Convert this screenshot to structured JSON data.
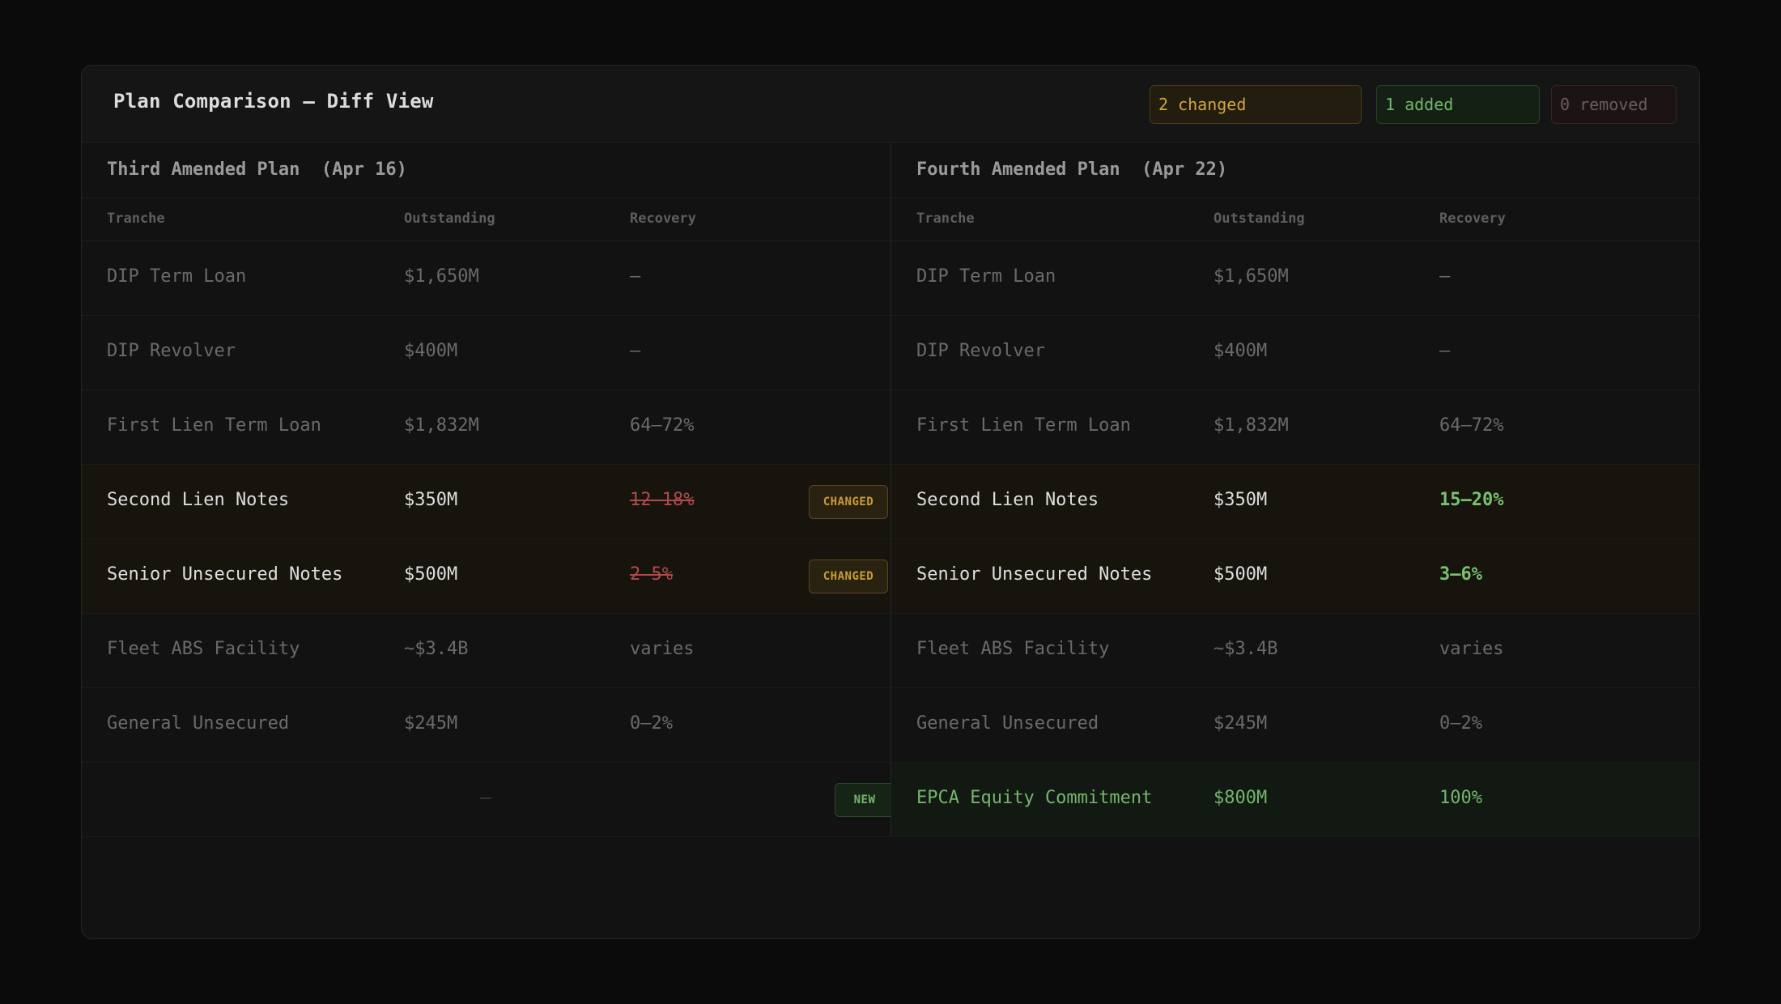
{
  "header": {
    "title": "Plan Comparison — Diff View",
    "summary": {
      "changed": "2 changed",
      "added": "1 added",
      "removed": "0 removed"
    }
  },
  "plans": {
    "left": "Third Amended Plan  (Apr 16)",
    "right": "Fourth Amended Plan  (Apr 22)"
  },
  "columns": [
    "Tranche",
    "Outstanding",
    "Recovery"
  ],
  "badges": {
    "changed": "CHANGED",
    "new": "NEW"
  },
  "rows": [
    {
      "status": "same",
      "left": {
        "tranche": "DIP Term Loan",
        "outstanding": "$1,650M",
        "recovery": "—"
      },
      "right": {
        "tranche": "DIP Term Loan",
        "outstanding": "$1,650M",
        "recovery": "—"
      }
    },
    {
      "status": "same",
      "left": {
        "tranche": "DIP Revolver",
        "outstanding": "$400M",
        "recovery": "—"
      },
      "right": {
        "tranche": "DIP Revolver",
        "outstanding": "$400M",
        "recovery": "—"
      }
    },
    {
      "status": "same",
      "left": {
        "tranche": "First Lien Term Loan",
        "outstanding": "$1,832M",
        "recovery": "64–72%"
      },
      "right": {
        "tranche": "First Lien Term Loan",
        "outstanding": "$1,832M",
        "recovery": "64–72%"
      }
    },
    {
      "status": "changed",
      "left": {
        "tranche": "Second Lien Notes",
        "outstanding": "$350M",
        "recovery": "12–18%"
      },
      "right": {
        "tranche": "Second Lien Notes",
        "outstanding": "$350M",
        "recovery": "15–20%"
      }
    },
    {
      "status": "changed",
      "left": {
        "tranche": "Senior Unsecured Notes",
        "outstanding": "$500M",
        "recovery": "2–5%"
      },
      "right": {
        "tranche": "Senior Unsecured Notes",
        "outstanding": "$500M",
        "recovery": "3–6%"
      }
    },
    {
      "status": "same",
      "left": {
        "tranche": "Fleet ABS Facility",
        "outstanding": "~$3.4B",
        "recovery": "varies"
      },
      "right": {
        "tranche": "Fleet ABS Facility",
        "outstanding": "~$3.4B",
        "recovery": "varies"
      }
    },
    {
      "status": "same",
      "left": {
        "tranche": "General Unsecured",
        "outstanding": "$245M",
        "recovery": "0–2%"
      },
      "right": {
        "tranche": "General Unsecured",
        "outstanding": "$245M",
        "recovery": "0–2%"
      }
    },
    {
      "status": "added",
      "left": {
        "placeholder": "—"
      },
      "right": {
        "tranche": "EPCA Equity Commitment",
        "outstanding": "$800M",
        "recovery": "100%"
      }
    }
  ],
  "colors": {
    "changed": "#d2a640",
    "added": "#74b56c",
    "removed": "#b04a4a",
    "background": "#0b0b0b"
  }
}
